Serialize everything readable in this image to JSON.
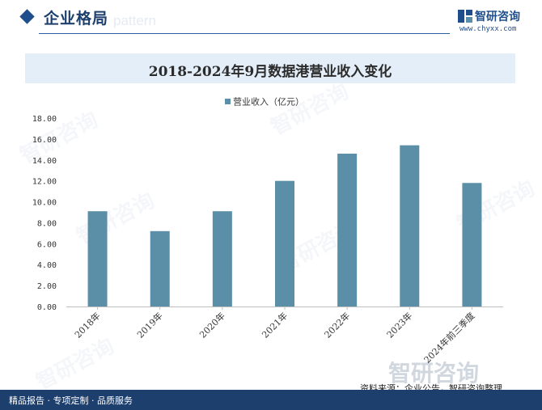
{
  "header": {
    "section_title": "企业格局",
    "ghost_text": "pattern"
  },
  "brand": {
    "name": "智研咨询",
    "url": "www.chyxx.com",
    "color": "#1e4e8c"
  },
  "watermark": {
    "text": "智研咨询"
  },
  "footer": {
    "left_text": "精品报告 · 专项定制 · 品质服务",
    "source_text": "资料来源：企业公告，智研咨询整理"
  },
  "chart_data": {
    "type": "bar",
    "title": "2018-2024年9月数据港营业收入变化",
    "categories": [
      "2018年",
      "2019年",
      "2020年",
      "2021年",
      "2022年",
      "2023年",
      "2024年前三季度"
    ],
    "series": [
      {
        "name": "营业收入（亿元）",
        "values": [
          9.1,
          7.2,
          9.1,
          12.0,
          14.6,
          15.4,
          11.8
        ],
        "color": "#5b8fa8"
      }
    ],
    "ylim": [
      0,
      18
    ],
    "yticks": [
      "0.00",
      "2.00",
      "4.00",
      "6.00",
      "8.00",
      "10.00",
      "12.00",
      "14.00",
      "16.00",
      "18.00"
    ],
    "grid": false,
    "legend": "top-center"
  }
}
